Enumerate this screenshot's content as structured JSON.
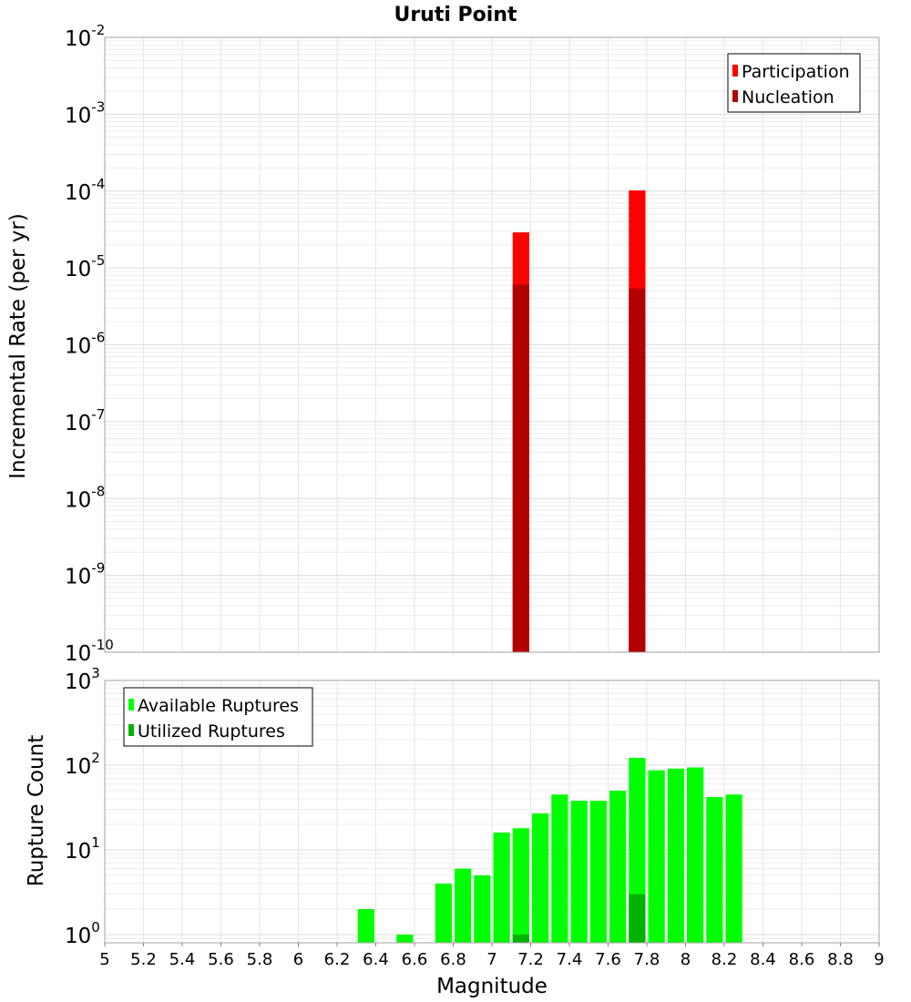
{
  "chart_data": [
    {
      "type": "bar",
      "title": "Uruti Point",
      "xlabel": "",
      "ylabel": "Incremental Rate (per yr)",
      "yscale": "log",
      "ylim": [
        1e-10,
        0.01
      ],
      "xlim": [
        5,
        9
      ],
      "bin_width": 0.1,
      "y_ticks": [
        {
          "base": "10",
          "exp": "-10"
        },
        {
          "base": "10",
          "exp": "-9"
        },
        {
          "base": "10",
          "exp": "-8"
        },
        {
          "base": "10",
          "exp": "-7"
        },
        {
          "base": "10",
          "exp": "-6"
        },
        {
          "base": "10",
          "exp": "-5"
        },
        {
          "base": "10",
          "exp": "-4"
        },
        {
          "base": "10",
          "exp": "-3"
        },
        {
          "base": "10",
          "exp": "-2"
        }
      ],
      "grid": true,
      "legend_position": "top-right",
      "series": [
        {
          "name": "Participation",
          "color": "#ff0000",
          "x": [
            7.15,
            7.75
          ],
          "values": [
            2.9e-05,
            0.000102
          ]
        },
        {
          "name": "Nucleation",
          "color": "#b30000",
          "x": [
            7.15,
            7.75
          ],
          "values": [
            6.1e-06,
            5.4e-06
          ]
        }
      ]
    },
    {
      "type": "bar",
      "title": "",
      "xlabel": "Magnitude",
      "ylabel": "Rupture Count",
      "yscale": "log",
      "ylim": [
        0.8,
        1000
      ],
      "xlim": [
        5,
        9
      ],
      "bin_width": 0.1,
      "y_ticks": [
        {
          "base": "10",
          "exp": "0"
        },
        {
          "base": "10",
          "exp": "1"
        },
        {
          "base": "10",
          "exp": "2"
        },
        {
          "base": "10",
          "exp": "3"
        }
      ],
      "x_ticks": [
        "5",
        "5.2",
        "5.4",
        "5.6",
        "5.8",
        "6",
        "6.2",
        "6.4",
        "6.6",
        "6.8",
        "7",
        "7.2",
        "7.4",
        "7.6",
        "7.8",
        "8",
        "8.2",
        "8.4",
        "8.6",
        "8.8",
        "9"
      ],
      "grid": true,
      "legend_position": "top-left",
      "series": [
        {
          "name": "Available Ruptures",
          "color": "#00ff00",
          "x": [
            6.35,
            6.55,
            6.75,
            6.85,
            6.95,
            7.05,
            7.15,
            7.25,
            7.35,
            7.45,
            7.55,
            7.65,
            7.75,
            7.85,
            7.95,
            8.05,
            8.15,
            8.25
          ],
          "values": [
            2,
            1,
            4,
            6,
            5,
            16,
            18,
            27,
            45,
            38,
            38,
            50,
            122,
            87,
            91,
            94,
            42,
            45
          ]
        },
        {
          "name": "Utilized Ruptures",
          "color": "#00b300",
          "x": [
            7.15,
            7.75
          ],
          "values": [
            1,
            3
          ]
        }
      ]
    }
  ]
}
